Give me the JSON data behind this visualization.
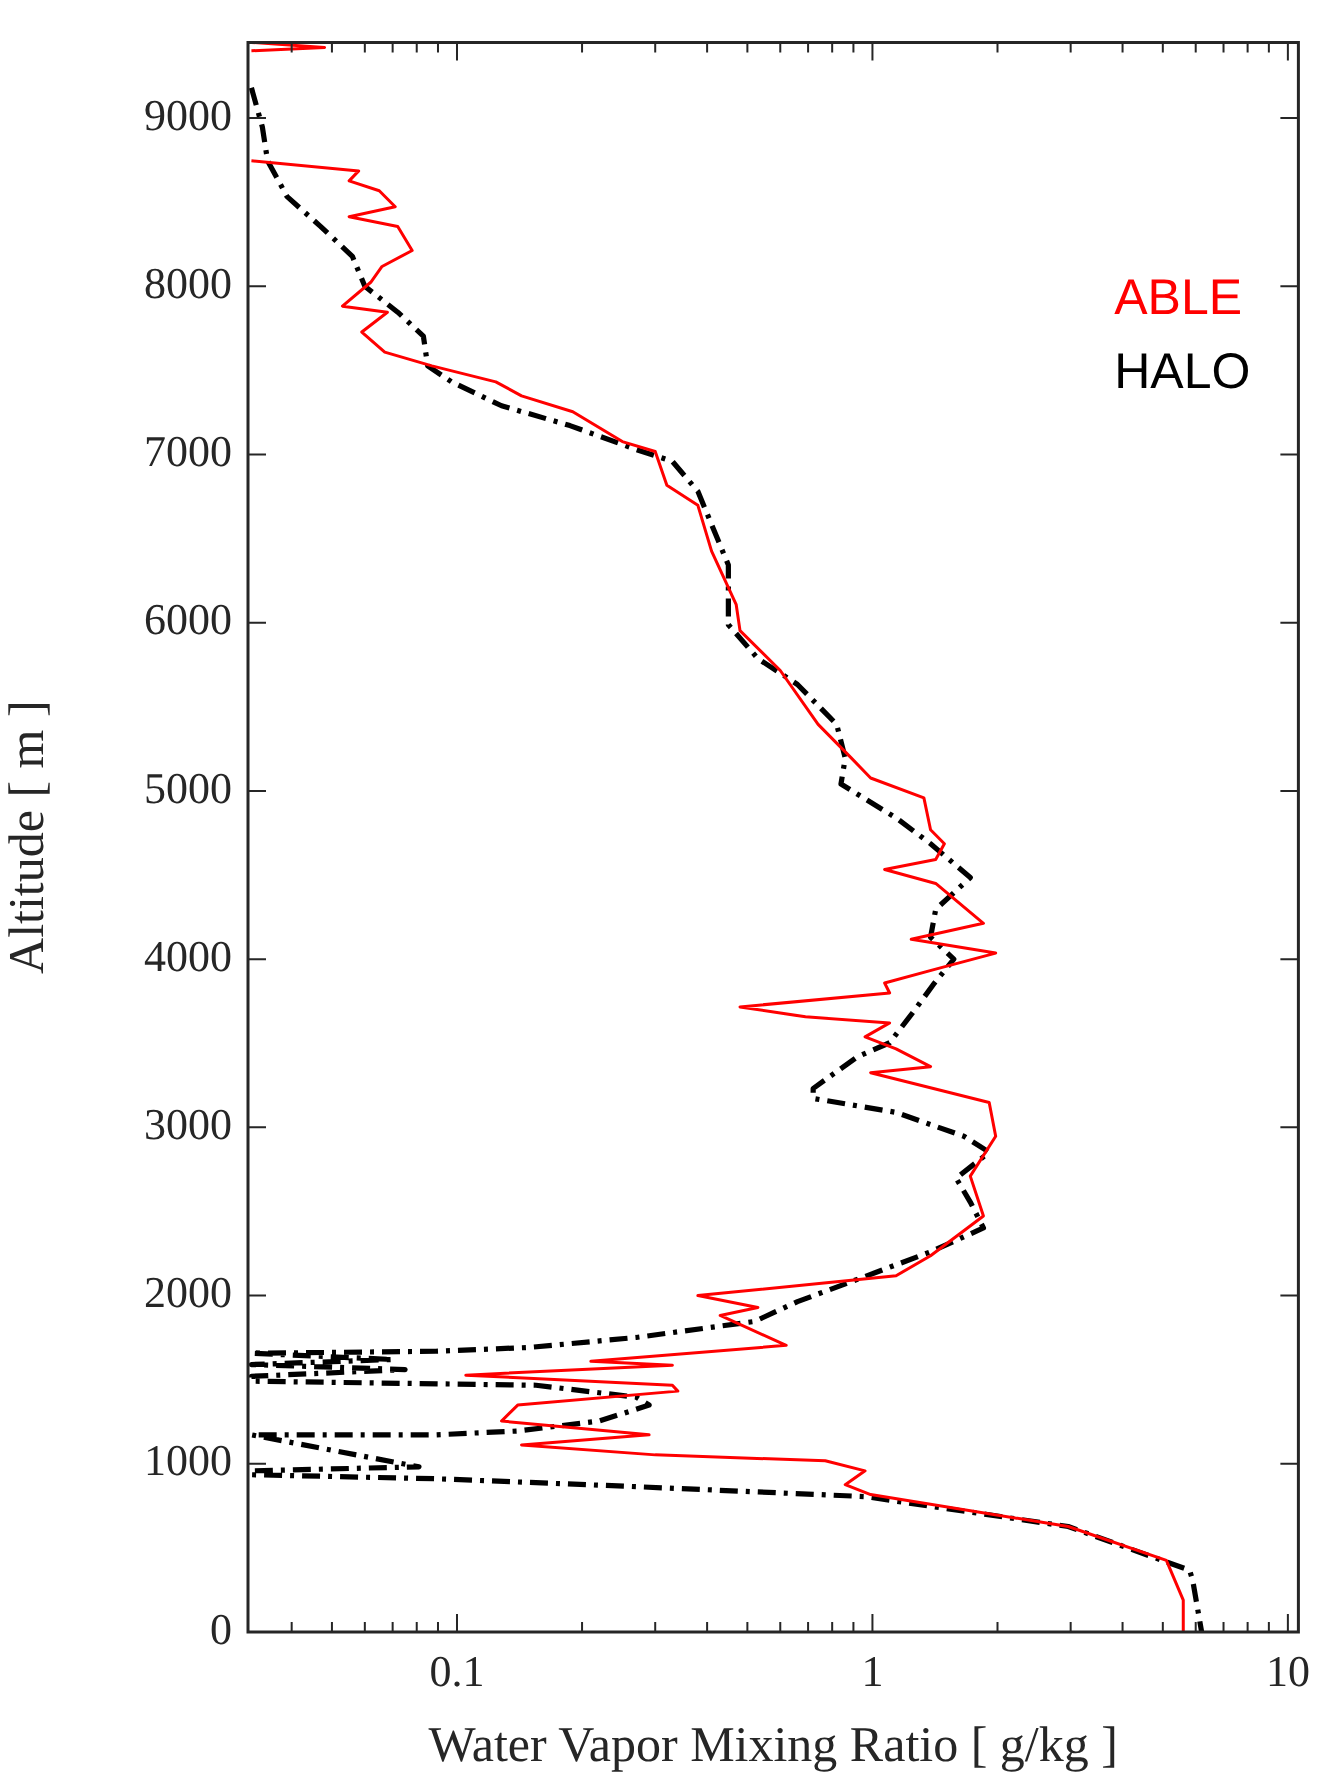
{
  "chart_data": {
    "type": "line",
    "xlabel": "Water Vapor Mixing Ratio [ g/kg ]",
    "ylabel": "Altitude [ m ]",
    "log": "x",
    "grid": false,
    "legend": "top right",
    "marker": "none",
    "xlim": [
      0.0314,
      10.6
    ],
    "ylim": [
      0,
      9450
    ],
    "xticks": [
      {
        "value": 0.04,
        "label": null
      },
      {
        "value": 0.05,
        "label": null
      },
      {
        "value": 0.06,
        "label": null
      },
      {
        "value": 0.07,
        "label": null
      },
      {
        "value": 0.08,
        "label": null
      },
      {
        "value": 0.09,
        "label": null
      },
      0.1,
      {
        "value": 0.2,
        "label": null
      },
      {
        "value": 0.3,
        "label": null
      },
      {
        "value": 0.4,
        "label": null
      },
      {
        "value": 0.5,
        "label": null
      },
      {
        "value": 0.6,
        "label": null
      },
      {
        "value": 0.7,
        "label": null
      },
      {
        "value": 0.8,
        "label": null
      },
      {
        "value": 0.9,
        "label": null
      },
      1,
      {
        "value": 2,
        "label": null
      },
      {
        "value": 3,
        "label": null
      },
      {
        "value": 4,
        "label": null
      },
      {
        "value": 5,
        "label": null
      },
      {
        "value": 6,
        "label": null
      },
      {
        "value": 7,
        "label": null
      },
      {
        "value": 8,
        "label": null
      },
      {
        "value": 9,
        "label": null
      },
      10
    ],
    "yticks": [
      0,
      1000,
      2000,
      3000,
      4000,
      5000,
      6000,
      7000,
      8000,
      9000
    ],
    "series": [
      {
        "name": "ABLE",
        "color": "#ff0000",
        "line_style": "solid",
        "x": [
          0.032,
          0.048,
          0.032,
          null,
          0.032,
          0.058,
          0.055,
          0.065,
          0.071,
          0.055,
          0.072,
          0.078,
          0.066,
          0.062,
          0.053,
          0.068,
          0.059,
          0.067,
          0.087,
          0.124,
          0.143,
          0.19,
          0.25,
          0.3,
          0.32,
          0.38,
          0.41,
          0.47,
          0.48,
          0.6,
          0.74,
          0.89,
          0.99,
          1.33,
          1.38,
          1.49,
          1.42,
          1.07,
          1.42,
          1.85,
          1.24,
          1.98,
          1.42,
          1.07,
          1.1,
          0.48,
          0.69,
          1.1,
          0.96,
          1.14,
          1.38,
          0.99,
          1.91,
          1.98,
          1.72,
          1.85,
          1.38,
          1.14,
          0.38,
          0.53,
          0.43,
          0.62,
          0.21,
          0.33,
          0.105,
          0.33,
          0.34,
          0.14,
          0.128,
          0.29,
          0.143,
          0.3,
          0.77,
          0.96,
          0.86,
          0.99,
          2.96,
          5.1,
          5.6,
          5.6
        ],
        "values": [
          9450,
          9420,
          9400,
          null,
          8746,
          8686,
          8627,
          8568,
          8473,
          8414,
          8355,
          8213,
          8118,
          8024,
          7882,
          7846,
          7728,
          7609,
          7527,
          7432,
          7349,
          7254,
          7077,
          7018,
          6817,
          6698,
          6426,
          6107,
          5953,
          5716,
          5396,
          5195,
          5077,
          4959,
          4769,
          4686,
          4592,
          4533,
          4450,
          4213,
          4118,
          4036,
          3941,
          3858,
          3799,
          3716,
          3657,
          3621,
          3538,
          3467,
          3361,
          3325,
          3148,
          2947,
          2710,
          2473,
          2237,
          2118,
          2000,
          1929,
          1882,
          1704,
          1609,
          1586,
          1527,
          1467,
          1432,
          1349,
          1254,
          1172,
          1112,
          1053,
          1018,
          958,
          876,
          817,
          627,
          426,
          190,
          0
        ]
      },
      {
        "name": "HALO",
        "color": "#000000",
        "line_style": "dashed",
        "x": [
          0.032,
          0.034,
          0.035,
          0.039,
          0.047,
          0.056,
          0.06,
          0.072,
          0.083,
          0.085,
          0.097,
          0.128,
          0.187,
          0.27,
          0.33,
          0.38,
          0.45,
          0.45,
          0.53,
          0.66,
          0.82,
          0.86,
          0.84,
          1.14,
          1.38,
          1.72,
          1.42,
          1.38,
          1.57,
          1.41,
          1.27,
          1.1,
          0.92,
          0.72,
          0.72,
          1.14,
          1.66,
          1.91,
          1.59,
          1.72,
          1.85,
          1.38,
          0.89,
          0.66,
          0.52,
          0.27,
          0.15,
          0.089,
          0.032,
          0.07,
          0.032,
          0.075,
          0.032,
          0.032,
          0.155,
          0.27,
          0.29,
          0.22,
          0.14,
          0.089,
          0.032,
          0.081,
          0.032,
          0.032,
          0.089,
          0.27,
          0.96,
          2.96,
          5.8,
          5.9,
          6.2
        ],
        "values": [
          9180,
          8947,
          8746,
          8533,
          8355,
          8178,
          8000,
          7846,
          7704,
          7527,
          7432,
          7290,
          7172,
          7030,
          6959,
          6781,
          6343,
          5988,
          5787,
          5633,
          5396,
          5195,
          5041,
          4840,
          4686,
          4485,
          4296,
          4130,
          4000,
          3858,
          3704,
          3503,
          3420,
          3231,
          3172,
          3089,
          2947,
          2852,
          2698,
          2556,
          2402,
          2260,
          2083,
          1964,
          1846,
          1751,
          1692,
          1669,
          1657,
          1620,
          1590,
          1560,
          1520,
          1491,
          1467,
          1396,
          1349,
          1254,
          1195,
          1172,
          1172,
          982,
          958,
          935,
          911,
          864,
          805,
          627,
          367,
          308,
          0
        ]
      }
    ]
  }
}
